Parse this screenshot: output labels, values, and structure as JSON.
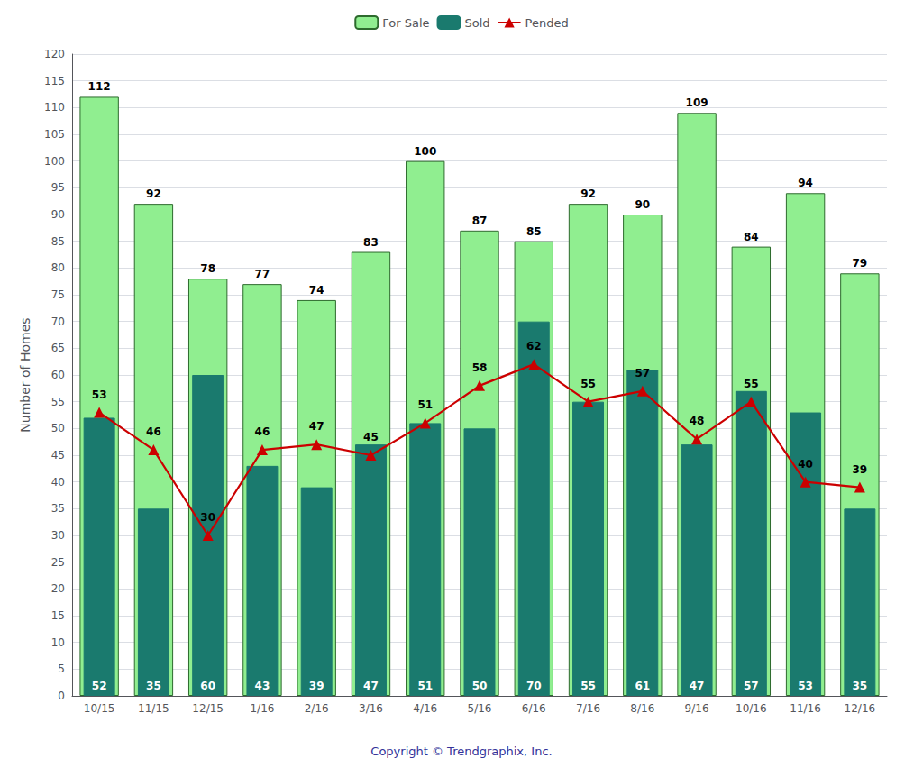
{
  "chart_data": {
    "type": "bar",
    "categories": [
      "10/15",
      "11/15",
      "12/15",
      "1/16",
      "2/16",
      "3/16",
      "4/16",
      "5/16",
      "6/16",
      "7/16",
      "8/16",
      "9/16",
      "10/16",
      "11/16",
      "12/16"
    ],
    "series": [
      {
        "name": "For Sale",
        "type": "bar",
        "color": "#90EE90",
        "values": [
          112,
          92,
          78,
          77,
          74,
          83,
          100,
          87,
          85,
          92,
          90,
          109,
          84,
          94,
          79
        ]
      },
      {
        "name": "Sold",
        "type": "bar",
        "color": "#1a7a6e",
        "values": [
          52,
          35,
          60,
          43,
          39,
          47,
          51,
          50,
          70,
          55,
          61,
          47,
          57,
          53,
          35
        ]
      },
      {
        "name": "Pended",
        "type": "line",
        "color": "#CC0000",
        "marker": "triangle",
        "values": [
          53,
          46,
          30,
          46,
          47,
          45,
          51,
          58,
          62,
          55,
          57,
          48,
          55,
          40,
          39
        ]
      }
    ],
    "ylabel": "Number of Homes",
    "ylim": [
      0,
      120
    ],
    "yticks": [
      0,
      5,
      10,
      15,
      20,
      25,
      30,
      35,
      40,
      45,
      50,
      55,
      60,
      65,
      70,
      75,
      80,
      85,
      90,
      95,
      100,
      105,
      110,
      115,
      120
    ],
    "grid": true,
    "legend": "top",
    "data_labels": true,
    "annotations": [
      "Copyright © Trendgraphix, Inc."
    ]
  }
}
